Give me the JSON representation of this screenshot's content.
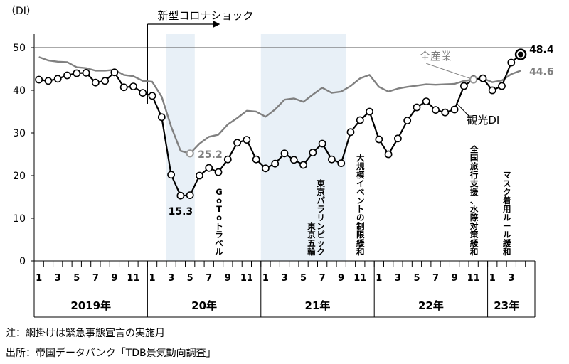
{
  "chart_data": {
    "type": "line",
    "y_unit_label": "（DI）",
    "ylim": [
      0,
      50
    ],
    "yticks": [
      0,
      10,
      20,
      30,
      40,
      50
    ],
    "x_tick_labels": [
      "1",
      "",
      "3",
      "",
      "5",
      "",
      "7",
      "",
      "9",
      "",
      "11",
      "",
      "1",
      "",
      "3",
      "",
      "5",
      "",
      "7",
      "",
      "9",
      "",
      "11",
      "",
      "1",
      "",
      "3",
      "",
      "5",
      "",
      "7",
      "",
      "9",
      "",
      "11",
      "",
      "1",
      "",
      "3",
      "",
      "5",
      "",
      "7",
      "",
      "9",
      "",
      "11",
      "",
      "1",
      "",
      "3",
      "",
      ""
    ],
    "year_labels": [
      {
        "label": "2019年",
        "start": 0,
        "end": 11
      },
      {
        "label": "20年",
        "start": 12,
        "end": 23
      },
      {
        "label": "21年",
        "start": 24,
        "end": 35
      },
      {
        "label": "22年",
        "start": 36,
        "end": 47
      },
      {
        "label": "23年",
        "start": 48,
        "end": 51
      }
    ],
    "shaded_months": [
      [
        14,
        16
      ],
      [
        24,
        26
      ],
      [
        27,
        32
      ]
    ],
    "reference_line": 50,
    "series": [
      {
        "name": "観光DI",
        "color": "#000000",
        "marker": "circle",
        "values": [
          42.5,
          42.2,
          42.7,
          43.5,
          44.0,
          44.1,
          41.8,
          42.2,
          44.2,
          40.7,
          40.9,
          39.4,
          38.7,
          33.7,
          20.2,
          15.3,
          15.4,
          20.0,
          21.8,
          20.8,
          23.8,
          27.7,
          28.4,
          23.8,
          21.7,
          22.8,
          25.2,
          23.7,
          22.5,
          25.4,
          27.5,
          23.8,
          22.9,
          30.2,
          33.0,
          35.0,
          28.5,
          25.0,
          28.7,
          32.9,
          36.0,
          37.4,
          35.4,
          34.8,
          35.5,
          41.0,
          42.6,
          42.8,
          40.0,
          41.0,
          46.5,
          48.4
        ]
      },
      {
        "name": "全産業",
        "color": "#808080",
        "marker": "none",
        "values": [
          47.8,
          47.0,
          46.7,
          46.6,
          45.4,
          45.2,
          44.6,
          44.6,
          44.8,
          43.6,
          43.3,
          42.2,
          42.0,
          38.5,
          31.5,
          25.8,
          25.2,
          27.5,
          29.1,
          29.6,
          32.0,
          33.5,
          35.2,
          35.0,
          33.8,
          35.5,
          37.8,
          38.1,
          37.3,
          39.0,
          40.6,
          39.4,
          39.7,
          41.0,
          42.8,
          43.6,
          40.8,
          39.7,
          40.4,
          40.8,
          41.1,
          41.4,
          41.3,
          41.4,
          41.5,
          42.2,
          42.5,
          42.8,
          41.9,
          42.3,
          43.8,
          44.6
        ]
      }
    ],
    "annotations": {
      "shock_label": "新型コロナショック",
      "zenzangyo_label": "全産業",
      "kanko_label": "観光DI",
      "value_min_kanko": "15.3",
      "value_min_zen": "25.2",
      "value_last_kanko": "48.4",
      "value_last_zen": "44.6",
      "events": [
        {
          "month": 19,
          "text": "GoToトラベル"
        },
        {
          "month": 30,
          "text": "東京パラリンピック"
        },
        {
          "month": 29,
          "text": "東京五輪"
        },
        {
          "month": 34,
          "text": "大規模イベントの制限緩和"
        },
        {
          "month": 46,
          "text": "全国旅行支援、水際対策緩和"
        },
        {
          "month": 50,
          "text": "マスク着用ルール緩和"
        }
      ]
    }
  },
  "notes": {
    "note1": "注：網掛けは緊急事態宣言の実施月",
    "note2": "出所：帝国データバンク「TDB景気動向調査」"
  }
}
